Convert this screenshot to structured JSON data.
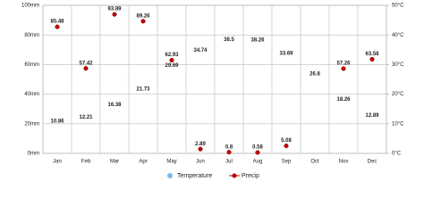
{
  "chart_data": {
    "type": "climate",
    "categories": [
      "Jan",
      "Feb",
      "Mar",
      "Apr",
      "May",
      "Jun",
      "Jul",
      "Aug",
      "Sep",
      "Oct",
      "Nov",
      "Dec"
    ],
    "series": [
      {
        "name": "Temperature",
        "color": "#7fb8e6",
        "axis": "y2",
        "values": [
          10.86,
          12.21,
          16.38,
          21.73,
          29.69,
          34.74,
          38.5,
          38.26,
          33.69,
          26.8,
          18.26,
          12.89
        ]
      },
      {
        "name": "Precip",
        "color": "#cc0000",
        "values": [
          85.48,
          57.42,
          93.89,
          89.26,
          62.93,
          2.89,
          0.8,
          0.58,
          5.08,
          null,
          57.26,
          63.58
        ]
      }
    ],
    "ylim": [
      0,
      100
    ],
    "yticks": [
      {
        "value": 0,
        "label": "0mm"
      },
      {
        "value": 20,
        "label": "20mm"
      },
      {
        "value": 40,
        "label": "40mm"
      },
      {
        "value": 60,
        "label": "60mm"
      },
      {
        "value": 80,
        "label": "80mm"
      },
      {
        "value": 100,
        "label": "100mm"
      }
    ],
    "y2lim": [
      0,
      50
    ],
    "y2ticks": [
      {
        "value": 0,
        "label": "0°C"
      },
      {
        "value": 10,
        "label": "10°C"
      },
      {
        "value": 20,
        "label": "20°C"
      },
      {
        "value": 30,
        "label": "30°C"
      },
      {
        "value": 40,
        "label": "40°C"
      },
      {
        "value": 50,
        "label": "50°C"
      }
    ],
    "grid": true
  }
}
